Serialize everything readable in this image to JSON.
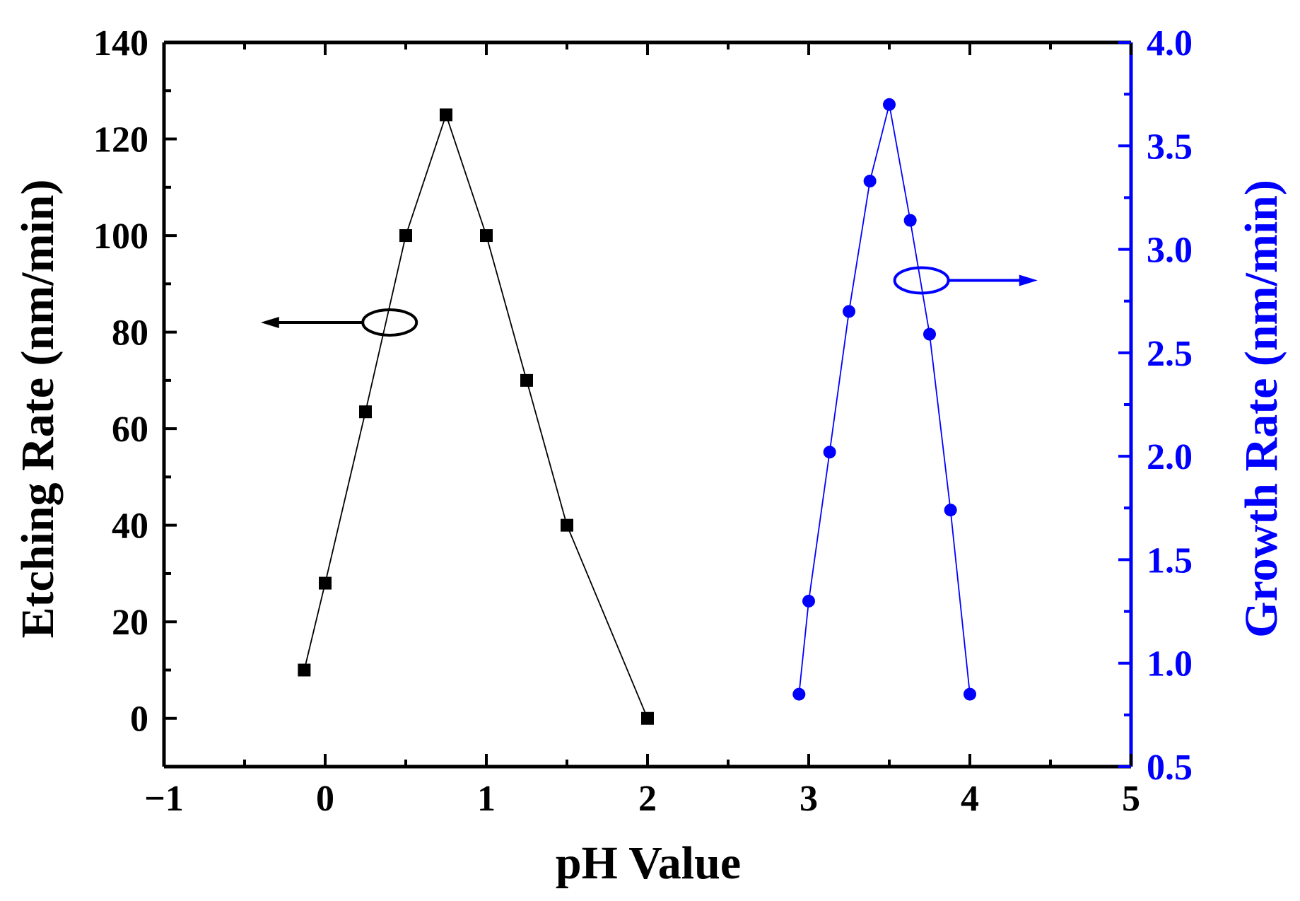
{
  "chart_data": {
    "type": "scatter",
    "xlabel": "pH Value",
    "ylabel_left": "Etching Rate (nm/min)",
    "ylabel_right": "Growth Rate (nm/min)",
    "xlim": [
      -1,
      5
    ],
    "ylim_left": [
      -10,
      140
    ],
    "ylim_right": [
      0.5,
      4.0
    ],
    "x_ticks": [
      "−1",
      "0",
      "1",
      "2",
      "3",
      "4",
      "5"
    ],
    "y_ticks_left": [
      "0",
      "20",
      "40",
      "60",
      "80",
      "100",
      "120",
      "140"
    ],
    "y_ticks_right": [
      "0.5",
      "1.0",
      "1.5",
      "2.0",
      "2.5",
      "3.0",
      "3.5",
      "4.0"
    ],
    "grid": false,
    "series": [
      {
        "axis": "left",
        "marker": "square",
        "color": "#000000",
        "x": [
          -0.13,
          0,
          0.25,
          0.5,
          0.75,
          1,
          1.25,
          1.5,
          2
        ],
        "y": [
          10,
          28,
          63.5,
          100,
          125,
          100,
          70,
          40,
          0
        ]
      },
      {
        "axis": "right",
        "marker": "circle",
        "color": "#0000ff",
        "x": [
          2.94,
          3,
          3.13,
          3.25,
          3.38,
          3.5,
          3.63,
          3.75,
          3.88,
          4
        ],
        "y": [
          0.85,
          1.3,
          2.02,
          2.7,
          3.33,
          3.7,
          3.14,
          2.59,
          1.74,
          0.85
        ]
      }
    ],
    "annotations": [
      {
        "type": "arrow-oval",
        "direction": "left",
        "axis": "left",
        "oval_x": 0.4,
        "oval_y": 82,
        "arrow_to_x": -0.4,
        "color": "#000000"
      },
      {
        "type": "arrow-oval",
        "direction": "right",
        "axis": "right",
        "oval_x": 3.7,
        "oval_y": 2.85,
        "arrow_to_x": 4.42,
        "color": "#0000ff"
      }
    ]
  }
}
